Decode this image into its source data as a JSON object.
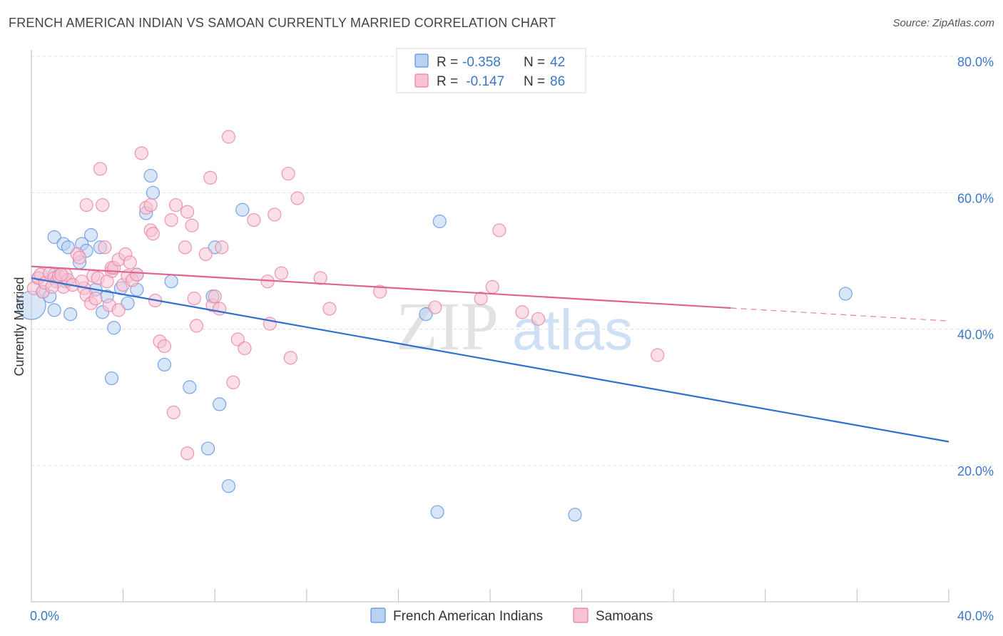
{
  "title": "FRENCH AMERICAN INDIAN VS SAMOAN CURRENTLY MARRIED CORRELATION CHART",
  "source": "Source: ZipAtlas.com",
  "watermark": {
    "zip": "ZIP",
    "atlas": "atlas"
  },
  "chart_data": {
    "type": "scatter",
    "ylabel": "Currently Married",
    "xlim": [
      0,
      40
    ],
    "ylim": [
      0,
      85
    ],
    "x_tick_labels": [
      {
        "value": 0,
        "label": "0.0%"
      },
      {
        "value": 40,
        "label": "40.0%"
      }
    ],
    "y_tick_labels": [
      {
        "value": 20,
        "label": "20.0%"
      },
      {
        "value": 40,
        "label": "40.0%"
      },
      {
        "value": 60,
        "label": "60.0%"
      },
      {
        "value": 80,
        "label": "80.0%"
      }
    ],
    "legend": [
      {
        "r_label": "R =",
        "r_value": "-0.358",
        "n_label": "N =",
        "n_value": "42"
      },
      {
        "r_label": "R =",
        "r_value": " -0.147",
        "n_label": "N =",
        "n_value": "86"
      }
    ],
    "series": [
      {
        "name": "French American Indians",
        "color": "#5b8fe0",
        "fill": "#b9d1f3",
        "trend": {
          "x0": 0,
          "y0": 47.5,
          "x1": 40,
          "y1": 23.5,
          "solid_end": 40
        },
        "points": [
          [
            0.0,
            43.5
          ],
          [
            0.3,
            47.5
          ],
          [
            0.5,
            45.5
          ],
          [
            0.8,
            44.8
          ],
          [
            1.0,
            48.0
          ],
          [
            1.0,
            42.8
          ],
          [
            1.0,
            53.5
          ],
          [
            1.4,
            52.5
          ],
          [
            1.6,
            52.0
          ],
          [
            1.7,
            42.2
          ],
          [
            2.1,
            49.8
          ],
          [
            2.2,
            52.5
          ],
          [
            2.4,
            51.5
          ],
          [
            2.6,
            53.8
          ],
          [
            2.8,
            45.8
          ],
          [
            3.0,
            52.0
          ],
          [
            3.1,
            42.5
          ],
          [
            3.3,
            44.8
          ],
          [
            3.5,
            32.8
          ],
          [
            3.6,
            40.2
          ],
          [
            3.9,
            46.0
          ],
          [
            4.2,
            43.8
          ],
          [
            4.6,
            45.8
          ],
          [
            4.6,
            48.0
          ],
          [
            5.0,
            57.0
          ],
          [
            5.2,
            62.5
          ],
          [
            5.3,
            60.0
          ],
          [
            5.8,
            34.8
          ],
          [
            6.1,
            47.0
          ],
          [
            6.9,
            31.5
          ],
          [
            7.7,
            22.5
          ],
          [
            7.9,
            44.8
          ],
          [
            8.0,
            52.0
          ],
          [
            8.2,
            29.0
          ],
          [
            8.6,
            17.0
          ],
          [
            9.2,
            57.5
          ],
          [
            17.2,
            42.2
          ],
          [
            17.8,
            55.8
          ],
          [
            17.7,
            13.2
          ],
          [
            23.7,
            12.8
          ],
          [
            35.5,
            45.2
          ],
          [
            1.5,
            47.0
          ]
        ]
      },
      {
        "name": "Samoans",
        "color": "#e77fa0",
        "fill": "#f7c3d3",
        "trend": {
          "x0": 0,
          "y0": 49.2,
          "x1": 40,
          "y1": 41.2,
          "solid_end": 30.5
        },
        "points": [
          [
            0.1,
            46.0
          ],
          [
            0.3,
            47.5
          ],
          [
            0.4,
            48.0
          ],
          [
            0.5,
            45.5
          ],
          [
            0.6,
            46.8
          ],
          [
            0.8,
            48.2
          ],
          [
            1.0,
            47.5
          ],
          [
            1.1,
            47.0
          ],
          [
            1.2,
            47.8
          ],
          [
            1.4,
            46.2
          ],
          [
            1.5,
            48.0
          ],
          [
            1.6,
            47.2
          ],
          [
            1.8,
            46.5
          ],
          [
            2.0,
            51.0
          ],
          [
            2.1,
            50.5
          ],
          [
            2.3,
            46.0
          ],
          [
            2.4,
            45.0
          ],
          [
            2.6,
            43.8
          ],
          [
            2.7,
            47.8
          ],
          [
            2.8,
            44.5
          ],
          [
            2.9,
            47.5
          ],
          [
            3.0,
            63.5
          ],
          [
            3.1,
            58.2
          ],
          [
            2.4,
            58.2
          ],
          [
            3.2,
            52.0
          ],
          [
            3.4,
            43.5
          ],
          [
            3.5,
            48.5
          ],
          [
            3.5,
            49.0
          ],
          [
            3.6,
            49.0
          ],
          [
            3.8,
            50.2
          ],
          [
            3.8,
            42.8
          ],
          [
            4.0,
            46.5
          ],
          [
            4.1,
            51.0
          ],
          [
            4.2,
            47.8
          ],
          [
            4.3,
            49.8
          ],
          [
            4.4,
            47.2
          ],
          [
            4.6,
            48.0
          ],
          [
            4.8,
            65.8
          ],
          [
            5.0,
            57.8
          ],
          [
            5.2,
            58.2
          ],
          [
            5.2,
            54.5
          ],
          [
            5.3,
            54.0
          ],
          [
            5.4,
            44.2
          ],
          [
            5.6,
            38.2
          ],
          [
            5.8,
            37.5
          ],
          [
            6.1,
            56.0
          ],
          [
            6.2,
            27.8
          ],
          [
            6.3,
            58.2
          ],
          [
            6.7,
            52.0
          ],
          [
            6.8,
            57.2
          ],
          [
            6.8,
            21.8
          ],
          [
            7.0,
            55.2
          ],
          [
            7.1,
            44.5
          ],
          [
            7.2,
            40.5
          ],
          [
            7.6,
            51.0
          ],
          [
            7.8,
            62.2
          ],
          [
            7.9,
            43.5
          ],
          [
            8.0,
            44.8
          ],
          [
            8.2,
            43.0
          ],
          [
            8.3,
            52.0
          ],
          [
            8.6,
            68.2
          ],
          [
            8.8,
            32.2
          ],
          [
            9.0,
            38.5
          ],
          [
            9.3,
            37.2
          ],
          [
            9.7,
            56.0
          ],
          [
            10.3,
            47.0
          ],
          [
            10.4,
            40.8
          ],
          [
            10.6,
            56.8
          ],
          [
            10.9,
            48.2
          ],
          [
            11.2,
            62.8
          ],
          [
            11.3,
            35.8
          ],
          [
            11.6,
            59.2
          ],
          [
            12.6,
            47.5
          ],
          [
            13.0,
            43.0
          ],
          [
            15.2,
            45.5
          ],
          [
            17.6,
            43.2
          ],
          [
            19.6,
            44.5
          ],
          [
            20.1,
            46.2
          ],
          [
            20.4,
            54.5
          ],
          [
            21.4,
            42.5
          ],
          [
            22.1,
            41.5
          ],
          [
            27.3,
            36.2
          ],
          [
            2.2,
            47.0
          ],
          [
            1.3,
            48.0
          ],
          [
            0.9,
            46.2
          ],
          [
            3.3,
            47.0
          ]
        ]
      }
    ]
  }
}
